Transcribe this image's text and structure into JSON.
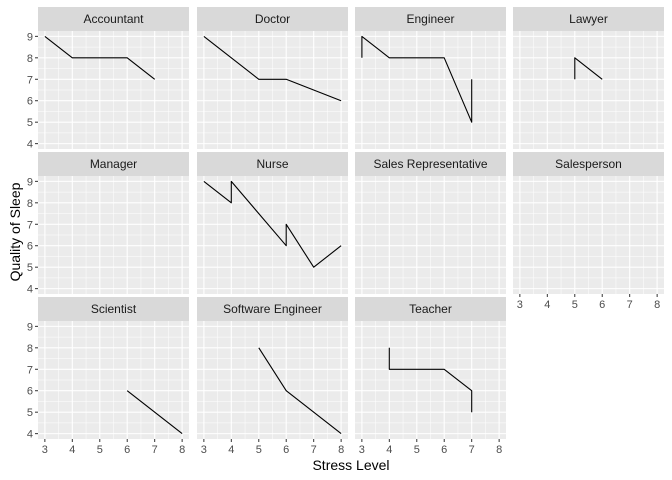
{
  "chart_data": {
    "type": "line",
    "layout": "facet_wrap",
    "xlabel": "Stress Level",
    "ylabel": "Quality of Sleep",
    "xlim": [
      2.75,
      8.25
    ],
    "ylim": [
      3.75,
      9.25
    ],
    "x_ticks": [
      3,
      4,
      5,
      6,
      7,
      8
    ],
    "y_ticks": [
      4,
      5,
      6,
      7,
      8,
      9
    ],
    "grid": true,
    "colors": {
      "panel_background": "#EBEBEB",
      "strip_background": "#D9D9D9",
      "grid_major": "#FFFFFF",
      "line": "#000000"
    },
    "facets": [
      {
        "name": "Accountant",
        "points": [
          [
            3,
            9
          ],
          [
            4,
            8
          ],
          [
            6,
            8
          ],
          [
            7,
            7
          ]
        ]
      },
      {
        "name": "Doctor",
        "points": [
          [
            3,
            9
          ],
          [
            5,
            7
          ],
          [
            6,
            7
          ],
          [
            8,
            6
          ]
        ]
      },
      {
        "name": "Engineer",
        "points": [
          [
            3,
            8
          ],
          [
            3,
            9
          ],
          [
            4,
            8
          ],
          [
            6,
            8
          ],
          [
            7,
            5
          ],
          [
            7,
            7
          ]
        ]
      },
      {
        "name": "Lawyer",
        "points": [
          [
            5,
            7
          ],
          [
            5,
            8
          ],
          [
            6,
            7
          ]
        ]
      },
      {
        "name": "Manager",
        "points": []
      },
      {
        "name": "Nurse",
        "points": [
          [
            3,
            9
          ],
          [
            4,
            8
          ],
          [
            4,
            9
          ],
          [
            6,
            6
          ],
          [
            6,
            7
          ],
          [
            7,
            5
          ],
          [
            8,
            6
          ]
        ]
      },
      {
        "name": "Sales Representative",
        "points": []
      },
      {
        "name": "Salesperson",
        "points": []
      },
      {
        "name": "Scientist",
        "points": [
          [
            6,
            6
          ],
          [
            8,
            4
          ]
        ]
      },
      {
        "name": "Software Engineer",
        "points": [
          [
            5,
            8
          ],
          [
            6,
            6
          ],
          [
            8,
            4
          ]
        ]
      },
      {
        "name": "Teacher",
        "points": [
          [
            4,
            8
          ],
          [
            4,
            7
          ],
          [
            6,
            7
          ],
          [
            7,
            6
          ],
          [
            7,
            5
          ]
        ]
      }
    ]
  }
}
